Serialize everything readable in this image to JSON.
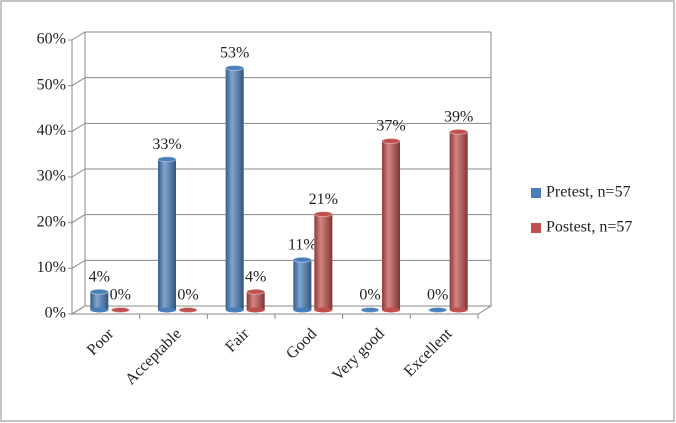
{
  "chart_data": {
    "type": "bar",
    "categories": [
      "Poor",
      "Acceptable",
      "Fair",
      "Good",
      "Very good",
      "Excellent"
    ],
    "series": [
      {
        "name": "Pretest, n=57",
        "color": "#4a7ebb",
        "values": [
          4,
          33,
          53,
          11,
          0,
          0
        ],
        "value_labels": [
          "4%",
          "33%",
          "53%",
          "11%",
          "0%",
          "0%"
        ]
      },
      {
        "name": "Postest, n=57",
        "color": "#c0504d",
        "values": [
          0,
          0,
          4,
          21,
          37,
          39
        ],
        "value_labels": [
          "0%",
          "0%",
          "4%",
          "21%",
          "37%",
          "39%"
        ]
      }
    ],
    "ylim": [
      0,
      60
    ],
    "yticks": [
      {
        "value": 0,
        "label": "0%"
      },
      {
        "value": 10,
        "label": "10%"
      },
      {
        "value": 20,
        "label": "20%"
      },
      {
        "value": 30,
        "label": "30%"
      },
      {
        "value": 40,
        "label": "40%"
      },
      {
        "value": 50,
        "label": "50%"
      },
      {
        "value": 60,
        "label": "60%"
      }
    ],
    "grid": true,
    "legend": "right"
  }
}
